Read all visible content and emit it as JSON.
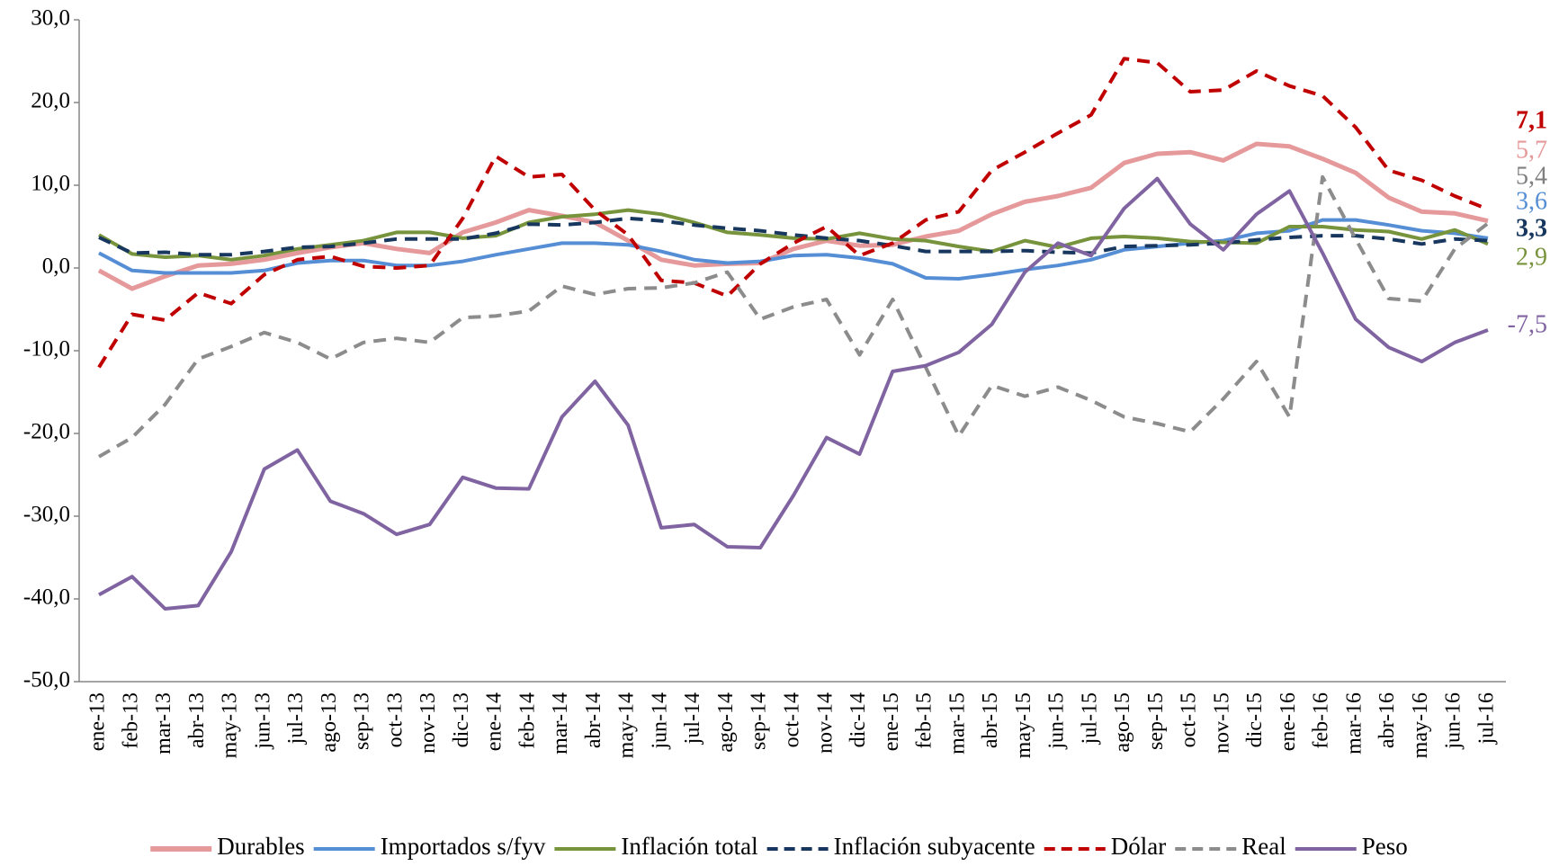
{
  "chart_data": {
    "type": "line",
    "categories": [
      "ene-13",
      "feb-13",
      "mar-13",
      "abr-13",
      "may-13",
      "jun-13",
      "jul-13",
      "ago-13",
      "sep-13",
      "oct-13",
      "nov-13",
      "dic-13",
      "ene-14",
      "feb-14",
      "mar-14",
      "abr-14",
      "may-14",
      "jun-14",
      "jul-14",
      "ago-14",
      "sep-14",
      "oct-14",
      "nov-14",
      "dic-14",
      "ene-15",
      "feb-15",
      "mar-15",
      "abr-15",
      "may-15",
      "jun-15",
      "jul-15",
      "ago-15",
      "sep-15",
      "oct-15",
      "nov-15",
      "dic-15",
      "ene-16",
      "feb-16",
      "mar-16",
      "abr-16",
      "may-16",
      "jun-16",
      "jul-16"
    ],
    "ylim": [
      -50,
      30
    ],
    "yticks": [
      {
        "value": -50,
        "label": "-50,0"
      },
      {
        "value": -40,
        "label": "-40,0"
      },
      {
        "value": -30,
        "label": "-30,0"
      },
      {
        "value": -20,
        "label": "-20,0"
      },
      {
        "value": -10,
        "label": "-10,0"
      },
      {
        "value": 0,
        "label": "0,0"
      },
      {
        "value": 10,
        "label": "10,0"
      },
      {
        "value": 20,
        "label": "20,0"
      },
      {
        "value": 30,
        "label": "30,0"
      }
    ],
    "grid": false,
    "legend": "bottom",
    "series": [
      {
        "name": "Durables",
        "color": "#e6999a",
        "dashed": false,
        "values": [
          -0.3,
          -2.5,
          -1,
          0.3,
          0.5,
          1,
          1.8,
          2.5,
          3,
          2.3,
          1.8,
          4.3,
          5.5,
          7,
          6.3,
          5.5,
          3.3,
          1,
          0.3,
          0.5,
          0.6,
          2.3,
          3.3,
          2.7,
          2.8,
          3.8,
          4.5,
          6.5,
          8,
          8.7,
          9.7,
          12.7,
          13.8,
          14,
          13,
          15,
          14.7,
          13.2,
          11.5,
          8.5,
          6.8,
          6.6,
          5.7
        ],
        "value_labels": [
          null,
          null,
          null,
          null,
          null,
          null,
          null,
          null,
          null,
          null,
          null,
          null,
          null,
          null,
          null,
          null,
          null,
          null,
          null,
          null,
          null,
          null,
          null,
          null,
          null,
          null,
          null,
          null,
          null,
          null,
          null,
          null,
          null,
          null,
          null,
          null,
          null,
          null,
          null,
          null,
          null,
          null,
          "5,7"
        ]
      },
      {
        "name": "Importados s/fyv",
        "color": "#558ed5",
        "dashed": false,
        "values": [
          1.8,
          -0.3,
          -0.6,
          -0.6,
          -0.6,
          -0.3,
          0.6,
          0.9,
          0.9,
          0.3,
          0.3,
          0.8,
          1.6,
          2.3,
          3,
          3,
          2.8,
          2,
          1,
          0.6,
          0.8,
          1.5,
          1.6,
          1.2,
          0.5,
          -1.2,
          -1.3,
          -0.8,
          -0.2,
          0.3,
          1,
          2.2,
          2.6,
          3,
          3.3,
          4.2,
          4.5,
          5.8,
          5.8,
          5.2,
          4.5,
          4.2,
          3.6
        ],
        "value_labels": [
          null,
          null,
          null,
          null,
          null,
          null,
          null,
          null,
          null,
          null,
          null,
          null,
          null,
          null,
          null,
          null,
          null,
          null,
          null,
          null,
          null,
          null,
          null,
          null,
          null,
          null,
          null,
          null,
          null,
          null,
          null,
          null,
          null,
          null,
          null,
          null,
          null,
          null,
          null,
          null,
          null,
          null,
          "3,6"
        ]
      },
      {
        "name": "Inflación total",
        "color": "#77933c",
        "dashed": false,
        "values": [
          4,
          1.7,
          1.3,
          1.5,
          1,
          1.5,
          2.3,
          2.8,
          3.3,
          4.3,
          4.3,
          3.6,
          3.9,
          5.5,
          6.2,
          6.5,
          7,
          6.5,
          5.5,
          4.3,
          4,
          3.6,
          3.5,
          4.2,
          3.5,
          3.3,
          2.6,
          2,
          3.3,
          2.5,
          3.6,
          3.8,
          3.6,
          3.2,
          3.1,
          3,
          5,
          5,
          4.6,
          4.4,
          3.5,
          4.6,
          2.9
        ],
        "value_labels": [
          null,
          null,
          null,
          null,
          null,
          null,
          null,
          null,
          null,
          null,
          null,
          null,
          null,
          null,
          null,
          null,
          null,
          null,
          null,
          null,
          null,
          null,
          null,
          null,
          null,
          null,
          null,
          null,
          null,
          null,
          null,
          null,
          null,
          null,
          null,
          null,
          null,
          null,
          null,
          null,
          null,
          null,
          "2,9"
        ]
      },
      {
        "name": "Inflación subyacente",
        "color": "#17375e",
        "dashed": true,
        "values": [
          3.7,
          1.8,
          1.9,
          1.6,
          1.6,
          2,
          2.5,
          2.6,
          3,
          3.5,
          3.5,
          3.5,
          4.2,
          5.3,
          5.2,
          5.5,
          6,
          5.7,
          5.2,
          4.8,
          4.5,
          4,
          3.6,
          3.3,
          2.7,
          2,
          2,
          2,
          2.1,
          1.9,
          1.8,
          2.6,
          2.7,
          2.8,
          3,
          3.4,
          3.7,
          3.9,
          3.9,
          3.5,
          2.9,
          3.5,
          3.3
        ],
        "value_labels": [
          null,
          null,
          null,
          null,
          null,
          null,
          null,
          null,
          null,
          null,
          null,
          null,
          null,
          null,
          null,
          null,
          null,
          null,
          null,
          null,
          null,
          null,
          null,
          null,
          null,
          null,
          null,
          null,
          null,
          null,
          null,
          null,
          null,
          null,
          null,
          null,
          null,
          null,
          null,
          null,
          null,
          null,
          "3,3"
        ]
      },
      {
        "name": "Dólar",
        "color": "#c00000",
        "dashed": true,
        "values": [
          -12,
          -5.6,
          -6.3,
          -3,
          -4.3,
          -0.8,
          1,
          1.4,
          0.2,
          0,
          0.3,
          6,
          13.5,
          11,
          11.3,
          7,
          4,
          -1.5,
          -1.8,
          -3.4,
          0.5,
          3,
          5,
          1.5,
          3,
          5.8,
          6.8,
          11.8,
          14,
          16.3,
          18.5,
          25.3,
          24.8,
          21.3,
          21.5,
          23.8,
          22,
          20.8,
          17,
          11.8,
          10.6,
          8.7,
          7.1
        ],
        "value_labels": [
          null,
          null,
          null,
          null,
          null,
          null,
          null,
          null,
          null,
          null,
          null,
          null,
          null,
          null,
          null,
          null,
          null,
          null,
          null,
          null,
          null,
          null,
          null,
          null,
          null,
          null,
          null,
          null,
          null,
          null,
          null,
          null,
          null,
          null,
          null,
          null,
          null,
          null,
          null,
          null,
          null,
          null,
          "7,1"
        ]
      },
      {
        "name": "Real",
        "color": "#8c8c8c",
        "dashed": true,
        "values": [
          -22.8,
          -20.5,
          -16.5,
          -11,
          -9.5,
          -7.8,
          -9,
          -11,
          -9,
          -8.5,
          -9,
          -6,
          -5.8,
          -5.2,
          -2.2,
          -3.2,
          -2.5,
          -2.4,
          -1.8,
          -0.5,
          -6.2,
          -4.7,
          -3.8,
          -10.5,
          -3.8,
          -12,
          -20.3,
          -14.2,
          -15.5,
          -14.4,
          -16,
          -18,
          -18.8,
          -19.8,
          -15.8,
          -11.3,
          -18,
          11,
          3.5,
          -3.7,
          -4,
          2.3,
          5.4
        ],
        "value_labels": [
          null,
          null,
          null,
          null,
          null,
          null,
          null,
          null,
          null,
          null,
          null,
          null,
          null,
          null,
          null,
          null,
          null,
          null,
          null,
          null,
          null,
          null,
          null,
          null,
          null,
          null,
          null,
          null,
          null,
          null,
          null,
          null,
          null,
          null,
          null,
          null,
          null,
          null,
          null,
          null,
          null,
          null,
          "5,4"
        ]
      },
      {
        "name": "Peso",
        "color": "#8064a2",
        "dashed": false,
        "values": [
          -39.5,
          -37.3,
          -41.2,
          -40.8,
          -34.3,
          -24.3,
          -22,
          -28.2,
          -29.7,
          -32.2,
          -31,
          -25.3,
          -26.6,
          -26.7,
          -18,
          -13.7,
          -19,
          -31.4,
          -31,
          -33.7,
          -33.8,
          -27.5,
          -20.5,
          -22.5,
          -12.5,
          -11.8,
          -10.2,
          -6.8,
          -0.5,
          3,
          1.5,
          7.2,
          10.8,
          5.3,
          2.2,
          6.5,
          9.3,
          1.8,
          -6.2,
          -9.6,
          -11.3,
          -9,
          -7.5
        ],
        "value_labels": [
          null,
          null,
          null,
          null,
          null,
          null,
          null,
          null,
          null,
          null,
          null,
          null,
          null,
          null,
          null,
          null,
          null,
          null,
          null,
          null,
          null,
          null,
          null,
          null,
          null,
          null,
          null,
          null,
          null,
          null,
          null,
          null,
          null,
          null,
          null,
          null,
          null,
          null,
          null,
          null,
          null,
          null,
          "-7,5"
        ]
      }
    ]
  }
}
